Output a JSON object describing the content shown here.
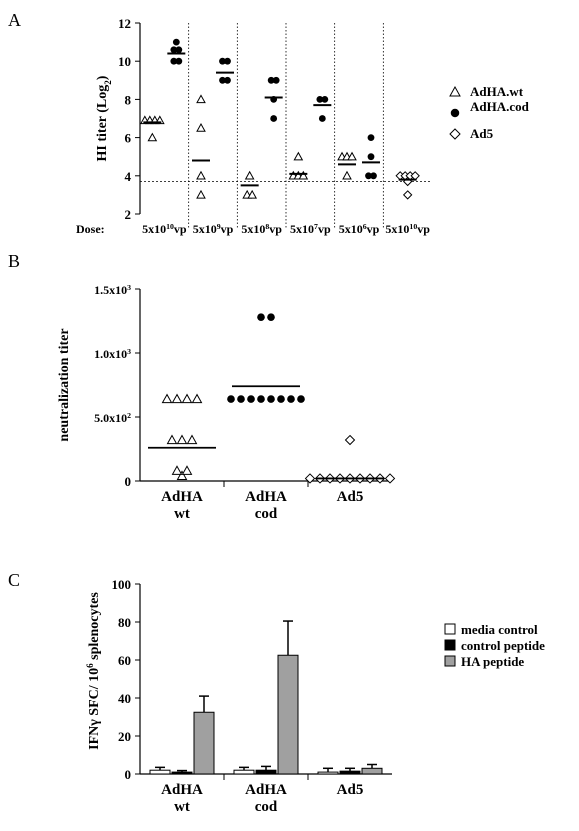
{
  "figure": {
    "panels": [
      {
        "label": "A"
      },
      {
        "label": "B"
      },
      {
        "label": "C"
      }
    ]
  },
  "chart_data": [
    {
      "type": "scatter",
      "panel": "A",
      "ylabel": "HI titer (Log",
      "ylabel_subscript": "2",
      "ylabel_suffix": ")",
      "ylim": [
        2,
        12
      ],
      "yticks": [
        2,
        4,
        6,
        8,
        10,
        12
      ],
      "x_prefix": "Dose:",
      "groups": [
        {
          "mantissa": "5x10",
          "exponent": "10",
          "unit": "vp"
        },
        {
          "mantissa": "5x10",
          "exponent": "9",
          "unit": "vp"
        },
        {
          "mantissa": "5x10",
          "exponent": "8",
          "unit": "vp"
        },
        {
          "mantissa": "5x10",
          "exponent": "7",
          "unit": "vp"
        },
        {
          "mantissa": "5x10",
          "exponent": "6",
          "unit": "vp"
        },
        {
          "mantissa": "5x10",
          "exponent": "10",
          "unit": "vp"
        }
      ],
      "detection_limit": 3.7,
      "legend_position": "right",
      "series": [
        {
          "name": "AdHA.wt",
          "marker": "triangle",
          "points": [
            [
              0,
              6.9
            ],
            [
              0,
              6.9
            ],
            [
              0,
              6.9
            ],
            [
              0,
              6.9
            ],
            [
              0,
              6.0
            ],
            [
              1,
              8.0
            ],
            [
              1,
              6.5
            ],
            [
              1,
              4.0
            ],
            [
              1,
              3.0
            ],
            [
              2,
              4.0
            ],
            [
              2,
              3.0
            ],
            [
              2,
              3.0
            ],
            [
              3,
              5.0
            ],
            [
              3,
              4.0
            ],
            [
              3,
              4.0
            ],
            [
              3,
              4.0
            ],
            [
              4,
              5.0
            ],
            [
              4,
              5.0
            ],
            [
              4,
              5.0
            ],
            [
              4,
              4.0
            ]
          ],
          "means": [
            [
              0,
              6.8
            ],
            [
              1,
              4.8
            ],
            [
              2,
              3.5
            ],
            [
              3,
              4.1
            ],
            [
              4,
              4.6
            ]
          ]
        },
        {
          "name": "AdHA.cod",
          "marker": "circle",
          "points": [
            [
              0,
              11.0
            ],
            [
              0,
              10.6
            ],
            [
              0,
              10.6
            ],
            [
              0,
              10.0
            ],
            [
              0,
              10.0
            ],
            [
              1,
              10.0
            ],
            [
              1,
              10.0
            ],
            [
              1,
              9.0
            ],
            [
              1,
              9.0
            ],
            [
              2,
              9.0
            ],
            [
              2,
              9.0
            ],
            [
              2,
              8.0
            ],
            [
              2,
              7.0
            ],
            [
              3,
              8.0
            ],
            [
              3,
              8.0
            ],
            [
              3,
              7.0
            ],
            [
              4,
              6.0
            ],
            [
              4,
              5.0
            ],
            [
              4,
              4.0
            ],
            [
              4,
              4.0
            ]
          ],
          "means": [
            [
              0,
              10.4
            ],
            [
              1,
              9.4
            ],
            [
              2,
              8.1
            ],
            [
              3,
              7.7
            ],
            [
              4,
              4.7
            ]
          ]
        },
        {
          "name": "Ad5",
          "marker": "diamond",
          "points": [
            [
              5,
              4.0
            ],
            [
              5,
              4.0
            ],
            [
              5,
              4.0
            ],
            [
              5,
              4.0
            ],
            [
              5,
              3.7
            ],
            [
              5,
              3.0
            ]
          ],
          "means": [
            [
              5,
              3.8
            ]
          ]
        }
      ]
    },
    {
      "type": "scatter",
      "panel": "B",
      "ylabel": "neutralization titer",
      "ylim": [
        0,
        1500
      ],
      "yticks": [
        {
          "value": 0,
          "label": "0"
        },
        {
          "value": 500,
          "mantissa": "5.0x10",
          "exponent": "2"
        },
        {
          "value": 1000,
          "mantissa": "1.0x10",
          "exponent": "3"
        },
        {
          "value": 1500,
          "mantissa": "1.5x10",
          "exponent": "3"
        }
      ],
      "categories": [
        {
          "line1": "AdHA",
          "line2": "wt"
        },
        {
          "line1": "AdHA",
          "line2": "cod"
        },
        {
          "line1": "Ad5",
          "line2": ""
        }
      ],
      "series": [
        {
          "category": 0,
          "marker": "triangle",
          "values": [
            640,
            640,
            640,
            640,
            320,
            320,
            320,
            80,
            40,
            80
          ],
          "mean": 260
        },
        {
          "category": 1,
          "marker": "circle",
          "values": [
            1280,
            1280,
            640,
            640,
            640,
            640,
            640,
            640,
            640,
            640
          ],
          "mean": 740
        },
        {
          "category": 2,
          "marker": "diamond",
          "values": [
            320,
            20,
            20,
            20,
            20,
            20,
            20,
            20,
            20,
            20
          ],
          "mean": 20
        }
      ]
    },
    {
      "type": "bar",
      "panel": "C",
      "ylabel": "IFNγ SFC/ 10",
      "ylabel_exponent": "6",
      "ylabel_suffix": " splenocytes",
      "ylim": [
        0,
        100
      ],
      "yticks": [
        0,
        20,
        40,
        60,
        80,
        100
      ],
      "categories": [
        {
          "line1": "AdHA",
          "line2": "wt"
        },
        {
          "line1": "AdHA",
          "line2": "cod"
        },
        {
          "line1": "Ad5",
          "line2": ""
        }
      ],
      "legend_position": "right",
      "series": [
        {
          "name": "media control",
          "color": "#ffffff",
          "values": [
            2,
            2,
            1
          ],
          "errors": [
            1.5,
            1.5,
            2
          ]
        },
        {
          "name": "control peptide",
          "color": "#000000",
          "values": [
            1,
            2,
            1.5
          ],
          "errors": [
            0.8,
            2,
            1.5
          ]
        },
        {
          "name": "HA peptide",
          "color": "#a0a0a0",
          "values": [
            32.5,
            62.5,
            3
          ],
          "errors": [
            8.5,
            18,
            2
          ]
        }
      ]
    }
  ]
}
